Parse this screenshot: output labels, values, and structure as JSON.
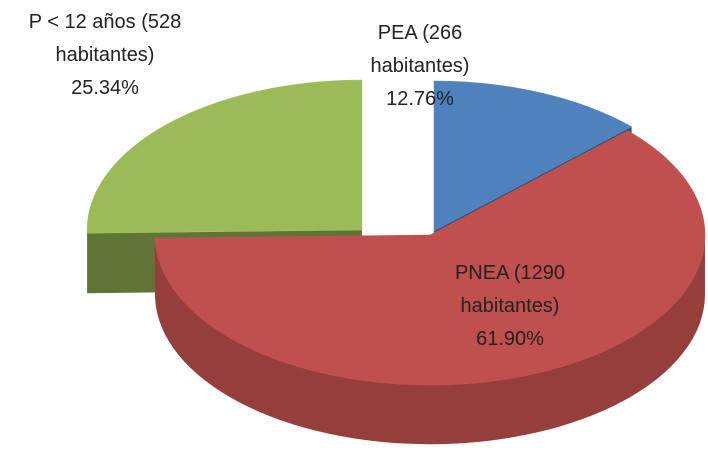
{
  "chart_data": {
    "type": "pie",
    "categories": [
      "PEA (266 habitantes)",
      "PNEA (1290 habitantes)",
      "P < 12 años (528 habitantes)"
    ],
    "values": [
      12.76,
      61.9,
      25.34
    ],
    "value_labels": [
      "12.76%",
      "61.90%",
      "25.34%"
    ],
    "colors": [
      "#4f81bd",
      "#c0504d",
      "#9bbb59"
    ]
  }
}
